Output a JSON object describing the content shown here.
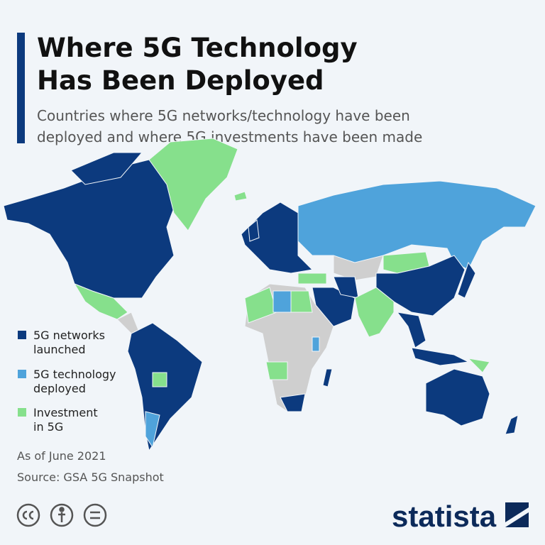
{
  "header": {
    "title_lines": [
      "Where 5G Technology",
      "Has Been Deployed"
    ],
    "subtitle_lines": [
      "Countries where 5G networks/technology have been",
      "deployed and where 5G investments have been made"
    ]
  },
  "legend": [
    {
      "label_lines": [
        "5G networks",
        "launched"
      ],
      "color": "#0c3a7e"
    },
    {
      "label_lines": [
        "5G technology",
        "deployed"
      ],
      "color": "#4fa3db"
    },
    {
      "label_lines": [
        "Investment",
        "in 5G"
      ],
      "color": "#86e08c"
    }
  ],
  "footer": {
    "note": "As of June 2021",
    "source": "Source: GSA 5G Snapshot"
  },
  "brand": "statista"
}
